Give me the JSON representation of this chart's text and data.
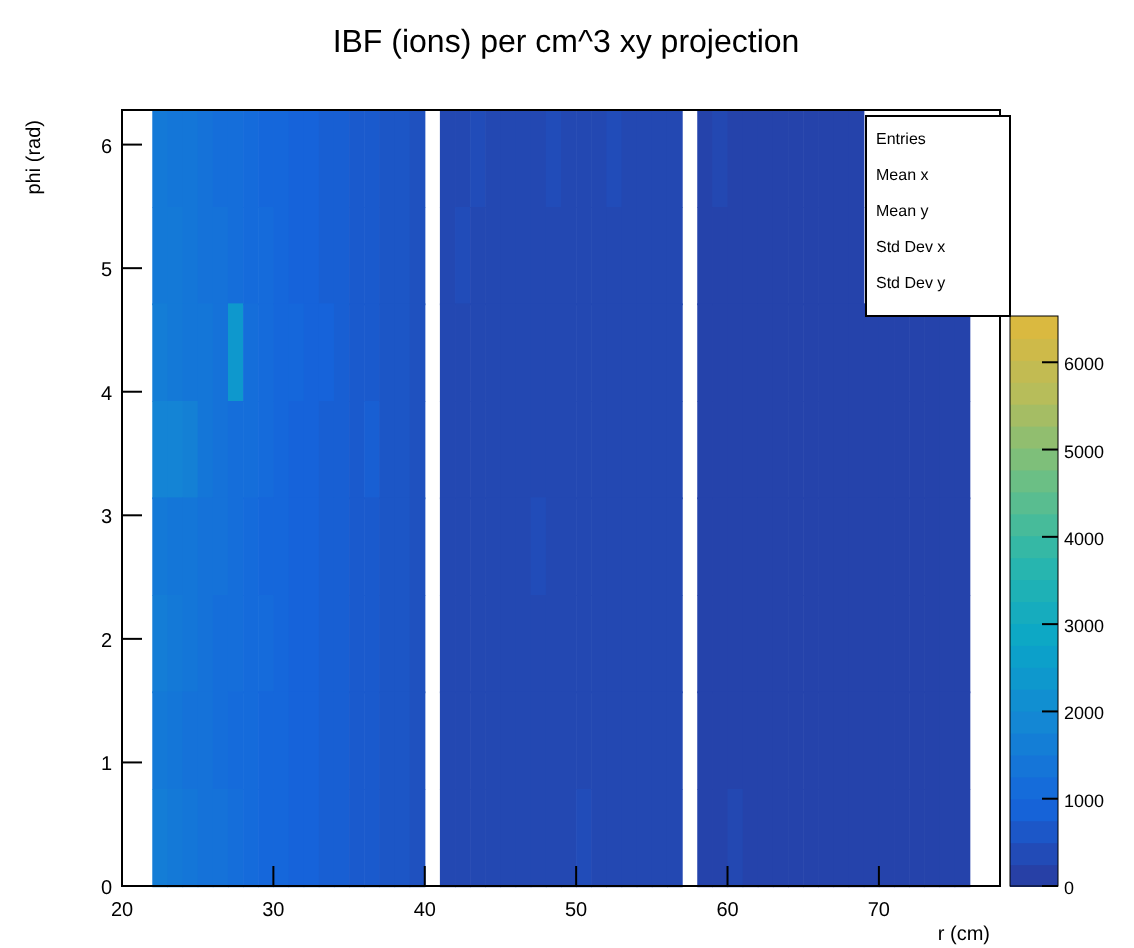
{
  "chart_data": {
    "type": "heatmap",
    "title": "IBF (ions) per cm^3 xy projection",
    "xlabel": "r (cm)",
    "ylabel": "phi (rad)",
    "x": [
      22.5,
      23.5,
      24.5,
      25.5,
      26.5,
      27.5,
      28.5,
      29.5,
      30.5,
      31.5,
      32.5,
      33.5,
      34.5,
      35.5,
      36.5,
      37.5,
      38.5,
      39.5,
      41.5,
      42.5,
      43.5,
      44.5,
      45.5,
      46.5,
      47.5,
      48.5,
      49.5,
      50.5,
      51.5,
      52.5,
      53.5,
      54.5,
      55.5,
      56.5,
      58.5,
      59.5,
      60.5,
      61.5,
      62.5,
      63.5,
      64.5,
      65.5,
      66.5,
      67.5,
      68.5,
      69.5,
      70.5,
      71.5,
      72.5,
      73.5,
      74.5,
      75.5
    ],
    "y": [
      5.89,
      5.1,
      4.32,
      3.53,
      2.75,
      1.96,
      1.18,
      0.39
    ],
    "cells": [
      [
        1500,
        1400,
        1400,
        1300,
        1200,
        1200,
        1100,
        1000,
        1000,
        900,
        900,
        800,
        800,
        700,
        700,
        600,
        600,
        500,
        300,
        300,
        400,
        300,
        300,
        300,
        300,
        400,
        300,
        300,
        300,
        400,
        300,
        300,
        300,
        300,
        200,
        300,
        200,
        200,
        200,
        200,
        200,
        200,
        200,
        200,
        200,
        null,
        null,
        null,
        null,
        null,
        null,
        null
      ],
      [
        1500,
        1500,
        1400,
        1300,
        1300,
        1200,
        1100,
        1100,
        1000,
        900,
        900,
        800,
        800,
        700,
        700,
        600,
        600,
        500,
        300,
        400,
        300,
        300,
        300,
        300,
        300,
        300,
        300,
        300,
        300,
        300,
        300,
        300,
        300,
        300,
        200,
        200,
        200,
        200,
        200,
        200,
        200,
        200,
        200,
        200,
        200,
        null,
        null,
        null,
        null,
        null,
        null,
        null
      ],
      [
        1600,
        1500,
        1400,
        1400,
        1300,
        2400,
        1200,
        1100,
        1000,
        1000,
        900,
        900,
        800,
        700,
        700,
        600,
        600,
        500,
        300,
        300,
        300,
        300,
        300,
        300,
        300,
        300,
        300,
        300,
        300,
        300,
        300,
        300,
        300,
        300,
        200,
        200,
        200,
        200,
        200,
        200,
        200,
        200,
        200,
        200,
        200,
        200,
        200,
        200,
        200,
        200,
        200,
        200
      ],
      [
        1800,
        1800,
        1700,
        1400,
        1300,
        1200,
        1200,
        1100,
        1000,
        900,
        900,
        800,
        800,
        700,
        800,
        600,
        600,
        500,
        300,
        300,
        300,
        300,
        300,
        300,
        300,
        300,
        300,
        300,
        300,
        300,
        300,
        300,
        300,
        300,
        200,
        200,
        200,
        200,
        200,
        200,
        200,
        200,
        200,
        200,
        200,
        200,
        200,
        200,
        200,
        200,
        200,
        200
      ],
      [
        1500,
        1400,
        1400,
        1300,
        1300,
        1200,
        1100,
        1000,
        1000,
        900,
        900,
        800,
        800,
        700,
        700,
        600,
        600,
        500,
        300,
        300,
        300,
        300,
        300,
        300,
        400,
        300,
        300,
        300,
        300,
        300,
        300,
        300,
        300,
        300,
        200,
        200,
        200,
        200,
        200,
        200,
        200,
        200,
        200,
        200,
        200,
        200,
        200,
        200,
        200,
        200,
        200,
        200
      ],
      [
        1600,
        1500,
        1400,
        1300,
        1200,
        1200,
        1100,
        1100,
        1000,
        900,
        900,
        800,
        800,
        700,
        700,
        600,
        600,
        500,
        300,
        300,
        300,
        300,
        300,
        300,
        300,
        300,
        300,
        300,
        300,
        300,
        300,
        300,
        300,
        300,
        200,
        200,
        200,
        200,
        200,
        200,
        200,
        200,
        200,
        200,
        200,
        200,
        200,
        200,
        200,
        200,
        200,
        200
      ],
      [
        1500,
        1400,
        1300,
        1300,
        1200,
        1100,
        1100,
        1000,
        1000,
        900,
        900,
        800,
        800,
        700,
        700,
        600,
        600,
        500,
        300,
        300,
        300,
        300,
        300,
        300,
        300,
        300,
        300,
        300,
        300,
        300,
        300,
        300,
        300,
        300,
        200,
        200,
        200,
        200,
        200,
        200,
        200,
        200,
        200,
        200,
        200,
        200,
        200,
        200,
        200,
        200,
        200,
        200
      ],
      [
        1600,
        1500,
        1400,
        1300,
        1300,
        1200,
        1100,
        1000,
        1000,
        900,
        900,
        800,
        800,
        700,
        700,
        600,
        600,
        500,
        300,
        300,
        300,
        300,
        300,
        300,
        300,
        300,
        300,
        400,
        300,
        300,
        300,
        300,
        300,
        300,
        200,
        200,
        300,
        200,
        200,
        200,
        200,
        200,
        200,
        200,
        200,
        200,
        200,
        200,
        200,
        200,
        200,
        200
      ]
    ],
    "xlim": [
      20,
      78
    ],
    "xticks": [
      20,
      30,
      40,
      50,
      60,
      70
    ],
    "ylim": [
      0,
      6.28
    ],
    "yticks": [
      0,
      1,
      2,
      3,
      4,
      5,
      6
    ],
    "clim": [
      0,
      6530
    ],
    "cticks": [
      0,
      1000,
      2000,
      3000,
      4000,
      5000,
      6000
    ],
    "annotations": [
      "Entries",
      "Mean x",
      "Mean y",
      "Std Dev x",
      "Std Dev y"
    ]
  }
}
